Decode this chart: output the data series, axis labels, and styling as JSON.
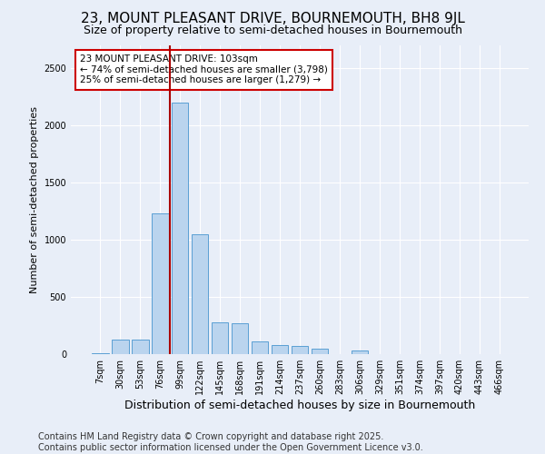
{
  "title": "23, MOUNT PLEASANT DRIVE, BOURNEMOUTH, BH8 9JL",
  "subtitle": "Size of property relative to semi-detached houses in Bournemouth",
  "xlabel": "Distribution of semi-detached houses by size in Bournemouth",
  "ylabel": "Number of semi-detached properties",
  "categories": [
    "7sqm",
    "30sqm",
    "53sqm",
    "76sqm",
    "99sqm",
    "122sqm",
    "145sqm",
    "168sqm",
    "191sqm",
    "214sqm",
    "237sqm",
    "260sqm",
    "283sqm",
    "306sqm",
    "329sqm",
    "351sqm",
    "374sqm",
    "397sqm",
    "420sqm",
    "443sqm",
    "466sqm"
  ],
  "values": [
    5,
    130,
    130,
    1230,
    2200,
    1050,
    280,
    270,
    110,
    80,
    75,
    50,
    0,
    30,
    0,
    0,
    0,
    0,
    0,
    0,
    0
  ],
  "bar_color": "#bad4ee",
  "bar_edge_color": "#5a9fd4",
  "vline_x": 3.5,
  "vline_color": "#aa0000",
  "annotation_text": "23 MOUNT PLEASANT DRIVE: 103sqm\n← 74% of semi-detached houses are smaller (3,798)\n25% of semi-detached houses are larger (1,279) →",
  "annotation_box_color": "white",
  "annotation_box_edge": "#cc0000",
  "footer": "Contains HM Land Registry data © Crown copyright and database right 2025.\nContains public sector information licensed under the Open Government Licence v3.0.",
  "ylim": [
    0,
    2700
  ],
  "yticks": [
    0,
    500,
    1000,
    1500,
    2000,
    2500
  ],
  "background_color": "#e8eef8",
  "plot_bg_color": "#e8eef8",
  "title_fontsize": 11,
  "subtitle_fontsize": 9,
  "xlabel_fontsize": 9,
  "ylabel_fontsize": 8,
  "tick_fontsize": 7,
  "footer_fontsize": 7,
  "annotation_fontsize": 7.5
}
